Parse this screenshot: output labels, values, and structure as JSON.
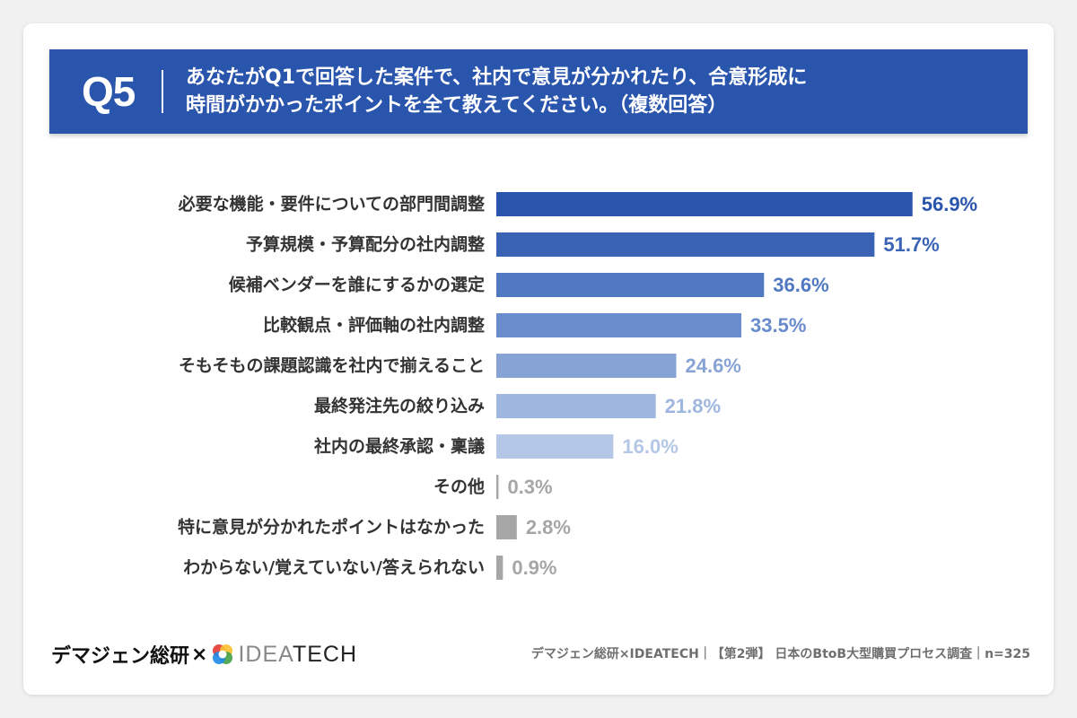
{
  "header": {
    "question_number": "Q5",
    "question_line1": "あなたがQ1で回答した案件で、社内で意見が分かれたり、合意形成に",
    "question_line2": "時間がかかったポイントを全て教えてください。（複数回答）"
  },
  "chart_data": {
    "type": "bar",
    "orientation": "horizontal",
    "categories": [
      "必要な機能・要件についての部門間調整",
      "予算規模・予算配分の社内調整",
      "候補ベンダーを誰にするかの選定",
      "比較観点・評価軸の社内調整",
      "そもそもの課題認識を社内で揃えること",
      "最終発注先の絞り込み",
      "社内の最終承認・稟議",
      "その他",
      "特に意見が分かれたポイントはなかった",
      "わからない/覚えていない/答えられない"
    ],
    "values": [
      56.9,
      51.7,
      36.6,
      33.5,
      24.6,
      21.8,
      16.0,
      0.3,
      2.8,
      0.9
    ],
    "value_labels": [
      "56.9%",
      "51.7%",
      "36.6%",
      "33.5%",
      "24.6%",
      "21.8%",
      "16.0%",
      "0.3%",
      "2.8%",
      "0.9%"
    ],
    "bar_colors": [
      "#2a55ad",
      "#3a63b6",
      "#5079c2",
      "#6a8ccc",
      "#87a3d6",
      "#9fb6df",
      "#b4c7e7",
      "#a6a6a6",
      "#a6a6a6",
      "#a6a6a6"
    ],
    "label_colors": [
      "#2a55ad",
      "#3a63b6",
      "#5079c2",
      "#6a8ccc",
      "#87a3d6",
      "#9fb6df",
      "#b4c7e7",
      "#a6a6a6",
      "#a6a6a6",
      "#a6a6a6"
    ],
    "xlim": [
      0,
      60
    ],
    "grid": false,
    "legend": "none"
  },
  "footer": {
    "brand_left": "デマジェン総研",
    "brand_times": "×",
    "brand_idea": "IDEA",
    "brand_tech": "TECH",
    "logo_icon": "ideatech-color-ring-icon",
    "source": "デマジェン総研×IDEATECH｜【第2弾】 日本のBtoB大型購買プロセス調査｜n=325"
  },
  "colors": {
    "accent": "#2a55ad",
    "category_text": "#333333",
    "background": "#f1f1f1"
  }
}
